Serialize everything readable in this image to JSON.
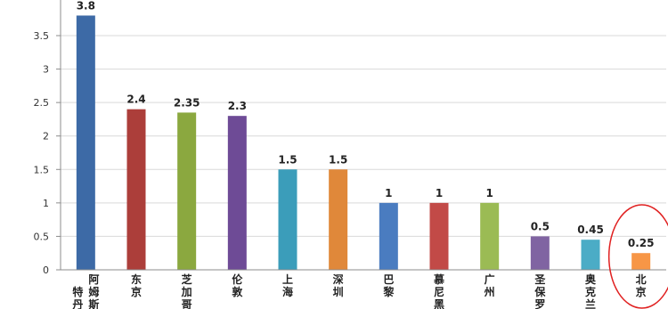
{
  "chart_data": {
    "type": "bar",
    "categories": [
      "阿姆斯特丹",
      "东京",
      "芝加哥",
      "伦敦",
      "上海",
      "深圳",
      "巴黎",
      "慕尼黑",
      "广州",
      "圣保罗",
      "奥克兰",
      "北京"
    ],
    "category_lines": [
      [
        "阿",
        "姆",
        "斯",
        "特",
        "丹"
      ],
      [
        "东",
        "京"
      ],
      [
        "芝",
        "加",
        "哥"
      ],
      [
        "伦",
        "敦"
      ],
      [
        "上",
        "海"
      ],
      [
        "深",
        "圳"
      ],
      [
        "巴",
        "黎"
      ],
      [
        "慕",
        "尼",
        "黑"
      ],
      [
        "广",
        "州"
      ],
      [
        "圣",
        "保",
        "罗"
      ],
      [
        "奥",
        "克",
        "兰"
      ],
      [
        "北",
        "京"
      ]
    ],
    "values": [
      3.8,
      2.4,
      2.35,
      2.3,
      1.5,
      1.5,
      1,
      1,
      1,
      0.5,
      0.45,
      0.25
    ],
    "value_labels": [
      "3.8",
      "2.4",
      "2.35",
      "2.3",
      "1.5",
      "1.5",
      "1",
      "1",
      "1",
      "0.5",
      "0.45",
      "0.25"
    ],
    "colors": [
      "#3d6aa6",
      "#ac3e3a",
      "#8ba83f",
      "#6e4b96",
      "#3b9dba",
      "#e0883a",
      "#4a7cc0",
      "#c24a47",
      "#9bbb54",
      "#8064a2",
      "#4bacc6",
      "#f79646"
    ],
    "yticks": [
      "0",
      "0.5",
      "1",
      "1.5",
      "2",
      "2.5",
      "3",
      "3.5"
    ],
    "ylim": [
      0,
      3.8
    ],
    "title": "",
    "xlabel": "",
    "ylabel": "",
    "grid": true,
    "legend": "none",
    "highlight_index": 11,
    "highlight_color": "#e02020"
  }
}
